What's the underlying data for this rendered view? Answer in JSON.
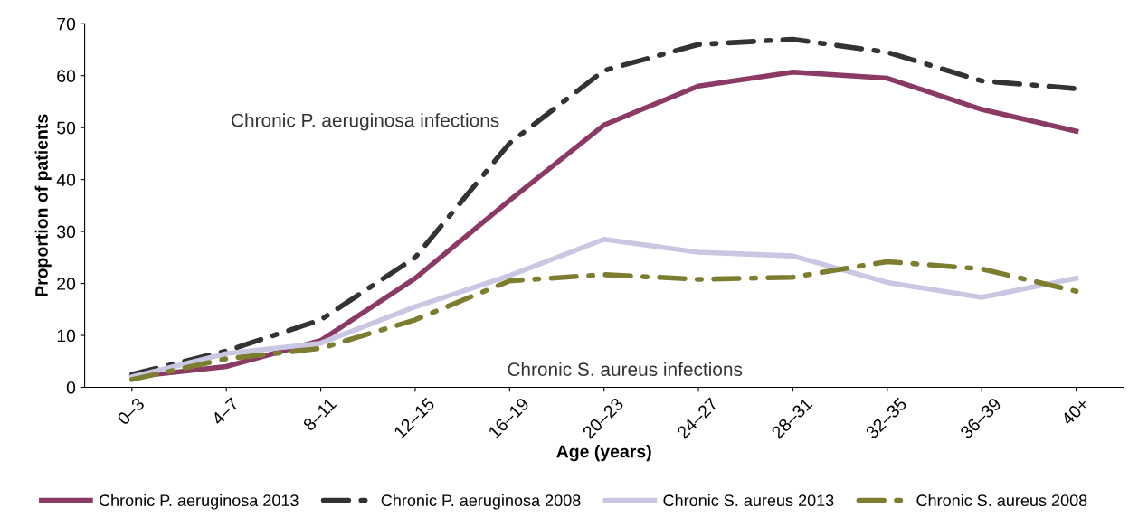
{
  "chart_data": {
    "type": "line",
    "xlabel": "Age (years)",
    "ylabel": "Proportion of patients",
    "categories": [
      "0–3",
      "4–7",
      "8–11",
      "12–15",
      "16–19",
      "20–23",
      "24–27",
      "28–31",
      "32–35",
      "36–39",
      "40+"
    ],
    "series": [
      {
        "name": "Chronic P. aeruginosa 2013",
        "color": "#8b3a66",
        "line_style": "solid",
        "values": [
          2,
          4,
          9,
          21,
          36,
          50.5,
          58,
          60.7,
          59.5,
          53.5,
          49.3
        ]
      },
      {
        "name": "Chronic P. aeruginosa 2008",
        "color": "#333333",
        "line_style": "dashed",
        "values": [
          2.5,
          7,
          13,
          25,
          47,
          61,
          66,
          67,
          64.5,
          59,
          57.5
        ]
      },
      {
        "name": "Chronic S. aureus 2013",
        "color": "#cac7e3",
        "line_style": "solid",
        "values": [
          2,
          6.5,
          8.5,
          15.5,
          21.5,
          28.5,
          26,
          25.3,
          20.2,
          17.3,
          21
        ]
      },
      {
        "name": "Chronic S. aureus 2008",
        "color": "#7d7d30",
        "line_style": "dashed",
        "values": [
          1.5,
          5.5,
          7.5,
          13,
          20.5,
          21.7,
          20.8,
          21.2,
          24.2,
          22.8,
          18.5
        ]
      }
    ],
    "ylim": [
      0,
      70
    ],
    "yticks": [
      0,
      10,
      20,
      30,
      40,
      50,
      60,
      70
    ],
    "grid": false,
    "legend": "bottom",
    "marker": "none",
    "annotations": [
      "Chronic P. aeruginosa infections",
      "Chronic S. aureus infections"
    ]
  }
}
